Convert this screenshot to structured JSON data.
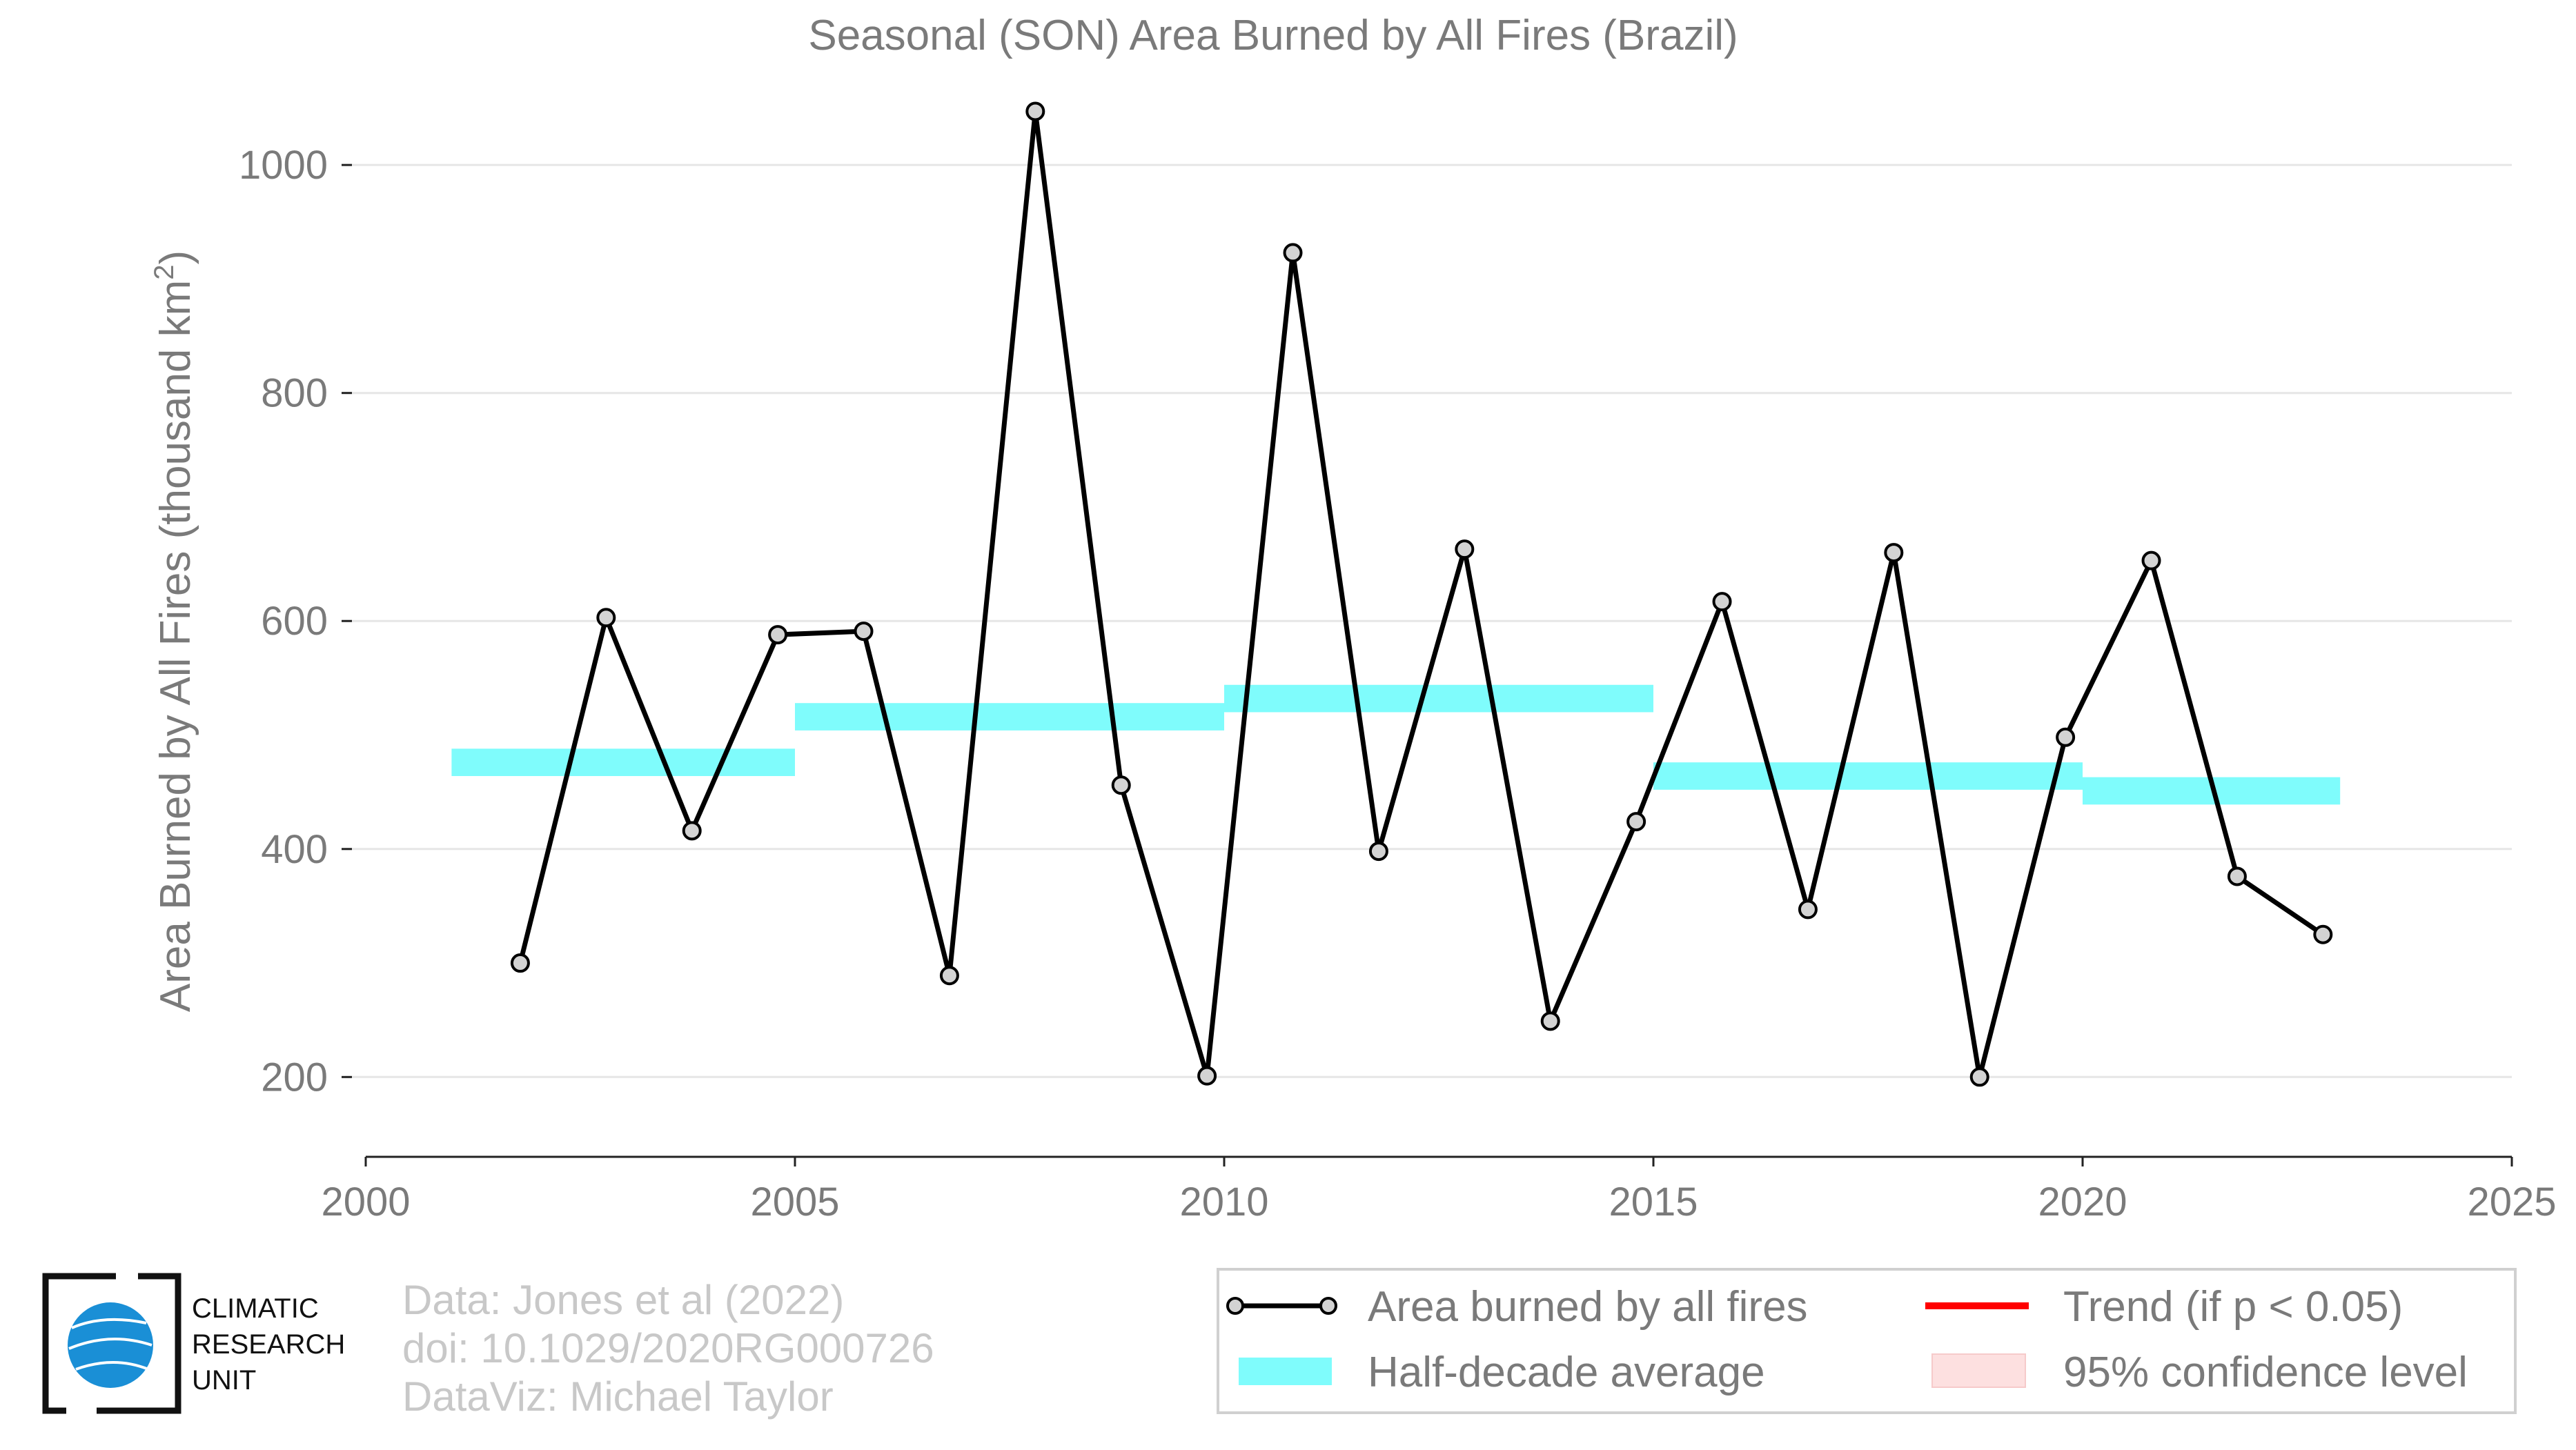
{
  "chart_data": {
    "type": "line",
    "title": "Seasonal (SON) Area Burned by All Fires (Brazil)",
    "ylabel": "Area Burned by All Fires (thousand km",
    "ylabel_superscript": "2",
    "ylabel_close": ")",
    "xlim": [
      2000,
      2025
    ],
    "ylim": [
      130,
      1060
    ],
    "x_ticks": [
      2000,
      2005,
      2010,
      2015,
      2020,
      2025
    ],
    "y_ticks": [
      200,
      400,
      600,
      800,
      1000
    ],
    "grid": "horizontal",
    "legend_position": "bottom-right",
    "series": [
      {
        "name": "Area burned by all fires",
        "color": "#000000",
        "marker": "circle",
        "x": [
          2001.8,
          2002.8,
          2003.8,
          2004.8,
          2005.8,
          2006.8,
          2007.8,
          2008.8,
          2009.8,
          2010.8,
          2011.8,
          2012.8,
          2013.8,
          2014.8,
          2015.8,
          2016.8,
          2017.8,
          2018.8,
          2019.8,
          2020.8,
          2021.8,
          2022.8
        ],
        "y": [
          300,
          603,
          416,
          588,
          591,
          289,
          1047,
          456,
          201,
          923,
          398,
          663,
          249,
          424,
          617,
          347,
          660,
          200,
          498,
          653,
          376,
          325
        ]
      }
    ],
    "half_decade_average": {
      "name": "Half-decade average",
      "color": "#7ffcfc",
      "segments": [
        {
          "x0": 2001,
          "x1": 2005,
          "y": 476
        },
        {
          "x0": 2005,
          "x1": 2010,
          "y": 516
        },
        {
          "x0": 2010,
          "x1": 2015,
          "y": 532
        },
        {
          "x0": 2015,
          "x1": 2020,
          "y": 464
        },
        {
          "x0": 2020,
          "x1": 2023,
          "y": 451
        }
      ]
    },
    "legend": [
      {
        "label": "Area burned by all fires",
        "kind": "line-marker",
        "color": "#000000"
      },
      {
        "label": "Trend (if p < 0.05)",
        "kind": "line",
        "color": "#ff0000"
      },
      {
        "label": "Half-decade average",
        "kind": "band",
        "color": "#7ffcfc"
      },
      {
        "label": "95% confidence level",
        "kind": "band",
        "color": "#fde0e0"
      }
    ]
  },
  "credits": {
    "line1": "Data: Jones et al (2022)",
    "line2": "doi: 10.1029/2020RG000726",
    "line3": "DataViz: Michael Taylor"
  },
  "logo": {
    "line1": "CLIMATIC",
    "line2": "RESEARCH",
    "line3": "UNIT",
    "globe_color": "#1a8fd6"
  }
}
